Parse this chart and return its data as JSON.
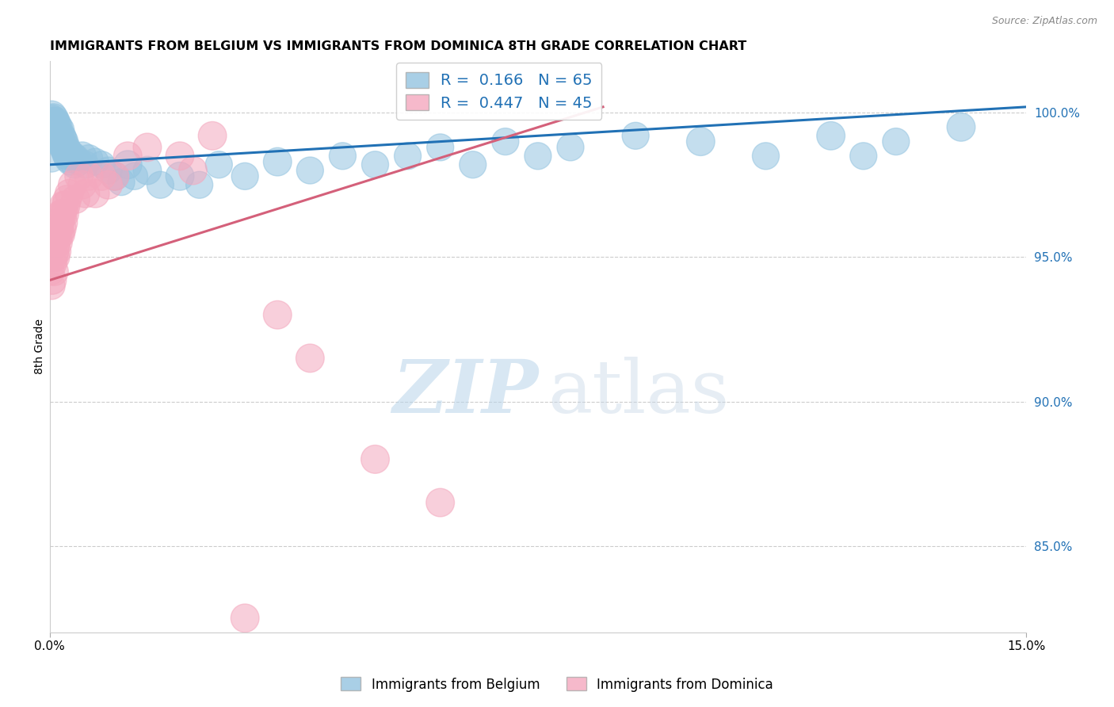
{
  "title": "IMMIGRANTS FROM BELGIUM VS IMMIGRANTS FROM DOMINICA 8TH GRADE CORRELATION CHART",
  "source": "Source: ZipAtlas.com",
  "ylabel": "8th Grade",
  "xlim": [
    0.0,
    15.0
  ],
  "ylim": [
    82.0,
    101.8
  ],
  "belgium_color": "#94c4e0",
  "dominica_color": "#f4a8be",
  "belgium_R": 0.166,
  "belgium_N": 65,
  "dominica_R": 0.447,
  "dominica_N": 45,
  "belgium_trend_x": [
    0.0,
    15.0
  ],
  "belgium_trend_y": [
    98.2,
    100.2
  ],
  "dominica_trend_x": [
    0.0,
    8.5
  ],
  "dominica_trend_y": [
    94.2,
    100.2
  ],
  "legend_label_belgium": "Immigrants from Belgium",
  "legend_label_dominica": "Immigrants from Dominica",
  "right_yticks": [
    100.0,
    95.0,
    90.0,
    85.0
  ],
  "right_ylabels": [
    "100.0%",
    "95.0%",
    "90.0%",
    "85.0%"
  ],
  "belgium_x": [
    0.03,
    0.04,
    0.05,
    0.06,
    0.07,
    0.08,
    0.09,
    0.1,
    0.11,
    0.12,
    0.13,
    0.14,
    0.15,
    0.16,
    0.17,
    0.18,
    0.19,
    0.2,
    0.21,
    0.22,
    0.23,
    0.24,
    0.25,
    0.26,
    0.27,
    0.28,
    0.3,
    0.32,
    0.35,
    0.38,
    0.4,
    0.45,
    0.5,
    0.55,
    0.6,
    0.7,
    0.8,
    0.9,
    1.0,
    1.1,
    1.2,
    1.3,
    1.5,
    1.7,
    2.0,
    2.3,
    2.6,
    3.0,
    3.5,
    4.0,
    4.5,
    5.0,
    5.5,
    6.0,
    6.5,
    7.0,
    7.5,
    8.0,
    9.0,
    10.0,
    11.0,
    12.0,
    12.5,
    13.0,
    14.0
  ],
  "belgium_y": [
    99.9,
    99.8,
    99.7,
    99.8,
    99.6,
    99.5,
    99.7,
    99.6,
    99.4,
    99.5,
    99.3,
    99.2,
    99.4,
    99.1,
    99.0,
    99.2,
    98.9,
    99.1,
    98.8,
    99.0,
    98.7,
    98.6,
    98.8,
    98.5,
    98.7,
    98.4,
    98.6,
    98.3,
    98.5,
    98.2,
    98.4,
    98.3,
    98.5,
    98.2,
    98.4,
    98.3,
    98.2,
    98.0,
    97.8,
    97.6,
    98.2,
    97.8,
    98.0,
    97.5,
    97.8,
    97.5,
    98.2,
    97.8,
    98.3,
    98.0,
    98.5,
    98.2,
    98.5,
    98.8,
    98.2,
    99.0,
    98.5,
    98.8,
    99.2,
    99.0,
    98.5,
    99.2,
    98.5,
    99.0,
    99.5
  ],
  "belgium_sizes": [
    60,
    50,
    55,
    60,
    55,
    60,
    55,
    60,
    55,
    60,
    55,
    55,
    60,
    55,
    55,
    55,
    55,
    55,
    55,
    55,
    50,
    50,
    55,
    50,
    50,
    50,
    55,
    50,
    55,
    50,
    55,
    50,
    55,
    50,
    55,
    50,
    50,
    50,
    55,
    50,
    55,
    50,
    55,
    50,
    55,
    50,
    50,
    50,
    55,
    50,
    50,
    50,
    50,
    50,
    50,
    50,
    50,
    50,
    50,
    55,
    50,
    55,
    50,
    50,
    55
  ],
  "belgium_large_idx": 0,
  "dominica_x": [
    0.02,
    0.03,
    0.04,
    0.05,
    0.06,
    0.07,
    0.08,
    0.09,
    0.1,
    0.11,
    0.12,
    0.13,
    0.14,
    0.15,
    0.16,
    0.17,
    0.18,
    0.19,
    0.2,
    0.21,
    0.22,
    0.23,
    0.25,
    0.27,
    0.3,
    0.35,
    0.4,
    0.45,
    0.5,
    0.55,
    0.6,
    0.7,
    0.8,
    0.9,
    1.0,
    1.2,
    1.5,
    2.0,
    2.5,
    3.0,
    3.5,
    4.0,
    5.0,
    6.0,
    2.2
  ],
  "dominica_y": [
    94.5,
    94.0,
    94.2,
    94.8,
    95.0,
    94.5,
    95.2,
    95.0,
    95.5,
    95.2,
    95.8,
    95.5,
    96.0,
    95.8,
    96.2,
    95.8,
    96.5,
    96.0,
    96.5,
    96.2,
    96.8,
    96.5,
    96.8,
    97.0,
    97.2,
    97.5,
    97.0,
    97.8,
    97.5,
    97.2,
    97.8,
    97.2,
    97.8,
    97.5,
    97.8,
    98.5,
    98.8,
    98.5,
    99.2,
    82.5,
    93.0,
    91.5,
    88.0,
    86.5,
    98.0
  ],
  "dominica_sizes": [
    50,
    50,
    55,
    55,
    55,
    55,
    55,
    55,
    55,
    55,
    55,
    55,
    55,
    55,
    55,
    55,
    55,
    55,
    55,
    55,
    55,
    55,
    55,
    55,
    55,
    55,
    55,
    55,
    55,
    55,
    55,
    55,
    55,
    55,
    55,
    55,
    55,
    55,
    55,
    55,
    55,
    55,
    55,
    55,
    55
  ]
}
